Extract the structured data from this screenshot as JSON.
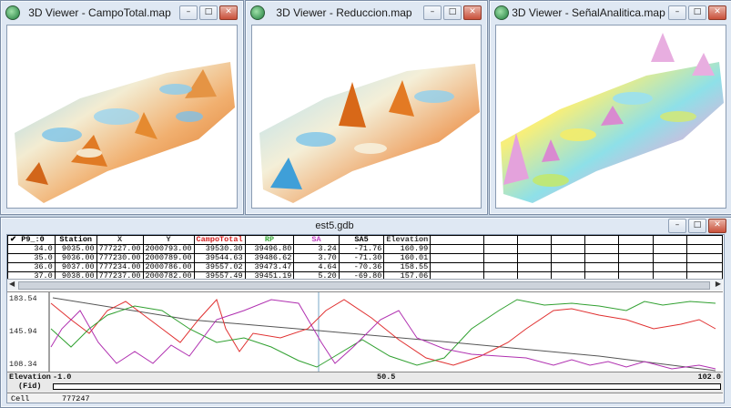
{
  "windows": {
    "viewer1": {
      "title": "3D Viewer - CampoTotal.map"
    },
    "viewer2": {
      "title": "3D Viewer - Reduccion.map"
    },
    "viewer3": {
      "title": "3D Viewer - SeñalAnalitica.map"
    },
    "database": {
      "title": "est5.gdb"
    }
  },
  "buttons": {
    "minimize": "–",
    "restore": "□",
    "close": "✕"
  },
  "grid": {
    "corner": "✔ P9_:0",
    "columns": [
      {
        "label": "Station",
        "cls": ""
      },
      {
        "label": "X",
        "cls": "c-dark"
      },
      {
        "label": "Y",
        "cls": "c-dark"
      },
      {
        "label": "CampoTotal",
        "cls": "c-red"
      },
      {
        "label": "RP",
        "cls": "c-green"
      },
      {
        "label": "SA",
        "cls": "c-mag"
      },
      {
        "label": "SA5",
        "cls": ""
      },
      {
        "label": "Elevation",
        "cls": "c-dark"
      }
    ],
    "rows": [
      {
        "fid": "34.0",
        "cells": [
          "9035.00",
          "777227.00",
          "2000793.00",
          "39530.30",
          "39496.80",
          "3.24",
          "-71.76",
          "160.99"
        ]
      },
      {
        "fid": "35.0",
        "cells": [
          "9036.00",
          "777230.00",
          "2000789.00",
          "39544.63",
          "39486.62",
          "3.70",
          "-71.30",
          "160.01"
        ]
      },
      {
        "fid": "36.0",
        "cells": [
          "9037.00",
          "777234.00",
          "2000786.00",
          "39557.02",
          "39473.47",
          "4.64",
          "-70.36",
          "158.55"
        ]
      },
      {
        "fid": "37.0",
        "cells": [
          "9038.00",
          "777237.00",
          "2000782.00",
          "39557.49",
          "39451.19",
          "5.20",
          "-69.80",
          "157.06"
        ]
      }
    ]
  },
  "plot": {
    "y_ticks": [
      "183.54",
      "145.94",
      "108.34"
    ],
    "colors": {
      "red": "#e03030",
      "green": "#30a030",
      "magenta": "#b030b0",
      "gray": "#555555"
    }
  },
  "axis": {
    "channel": "Elevation",
    "fid_label": "(Fid)",
    "min": "-1.0",
    "mid": "50.5",
    "max": "102.0"
  },
  "cell": {
    "label": "Cell",
    "value": "777247"
  }
}
